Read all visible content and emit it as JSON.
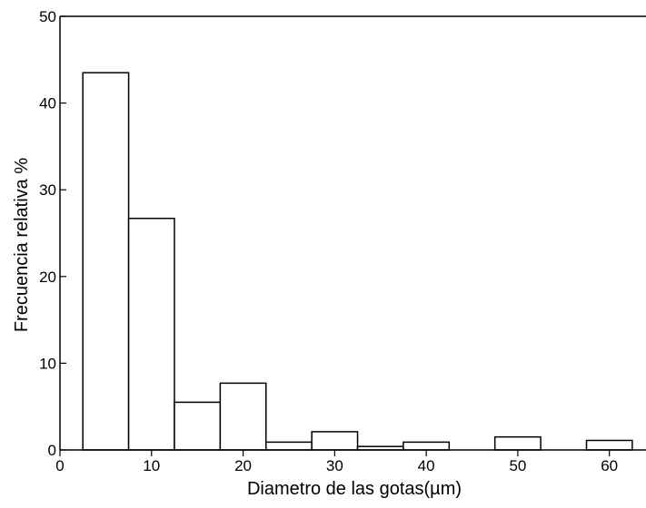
{
  "chart_data": {
    "type": "bar",
    "title": "",
    "xlabel": "Diametro de las gotas(µm)",
    "ylabel": "Frecuencia relativa %",
    "xlim": [
      0,
      64
    ],
    "ylim": [
      0,
      50
    ],
    "x_ticks": [
      0,
      10,
      20,
      30,
      40,
      50,
      60
    ],
    "y_ticks": [
      0,
      10,
      20,
      30,
      40,
      50
    ],
    "bins": [
      {
        "x0": 2.5,
        "x1": 7.5,
        "value": 43.5
      },
      {
        "x0": 7.5,
        "x1": 12.5,
        "value": 26.7
      },
      {
        "x0": 12.5,
        "x1": 17.5,
        "value": 5.5
      },
      {
        "x0": 17.5,
        "x1": 22.5,
        "value": 7.7
      },
      {
        "x0": 22.5,
        "x1": 27.5,
        "value": 0.9
      },
      {
        "x0": 27.5,
        "x1": 32.5,
        "value": 2.1
      },
      {
        "x0": 32.5,
        "x1": 37.5,
        "value": 0.4
      },
      {
        "x0": 37.5,
        "x1": 42.5,
        "value": 0.9
      },
      {
        "x0": 47.5,
        "x1": 52.5,
        "value": 1.5
      },
      {
        "x0": 57.5,
        "x1": 62.5,
        "value": 1.1
      }
    ],
    "grid": false,
    "legend": "none",
    "colors": {
      "bar_fill": "#ffffff",
      "bar_stroke": "#000000",
      "axis": "#000000"
    }
  }
}
